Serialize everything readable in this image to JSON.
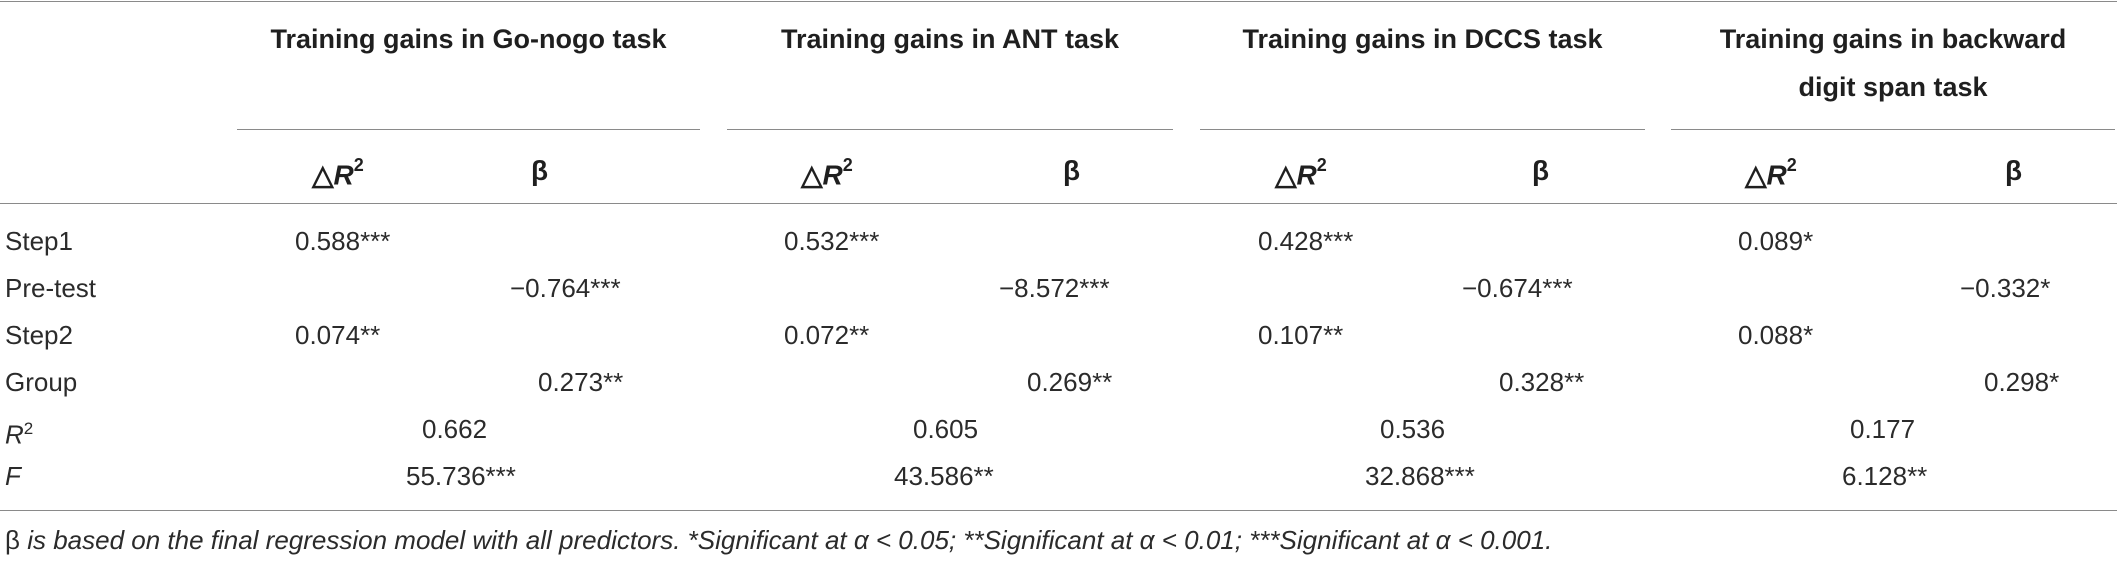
{
  "table": {
    "headers": [
      "Training gains in Go-nogo task",
      "Training gains in ANT task",
      "Training gains in DCCS task",
      "Training gains in backward",
      "digit span task"
    ],
    "sub": {
      "delta_prefix": "△",
      "delta_main": "R",
      "delta_sup": "2",
      "beta": "β"
    },
    "row_labels": {
      "step1": "Step1",
      "pretest": "Pre-test",
      "step2": "Step2",
      "group": "Group",
      "r2_main": "R",
      "r2_sup": "2",
      "f": "F"
    },
    "cols": [
      {
        "step1": "0.588***",
        "pretest": "−0.764***",
        "step2": "0.074**",
        "group": "0.273**",
        "r2": "0.662",
        "f": "55.736***"
      },
      {
        "step1": "0.532***",
        "pretest": "−8.572***",
        "step2": "0.072**",
        "group": "0.269**",
        "r2": "0.605",
        "f": "43.586**"
      },
      {
        "step1": "0.428***",
        "pretest": "−0.674***",
        "step2": "0.107**",
        "group": "0.328**",
        "r2": "0.536",
        "f": "32.868***"
      },
      {
        "step1": "0.089*",
        "pretest": "−0.332*",
        "step2": "0.088*",
        "group": "0.298*",
        "r2": "0.177",
        "f": "6.128**"
      }
    ],
    "footnote": {
      "beta": "β",
      "text": " is based on the final regression model with all predictors. *Significant at α < 0.05; **Significant at α < 0.01; ***Significant at α < 0.001."
    }
  }
}
